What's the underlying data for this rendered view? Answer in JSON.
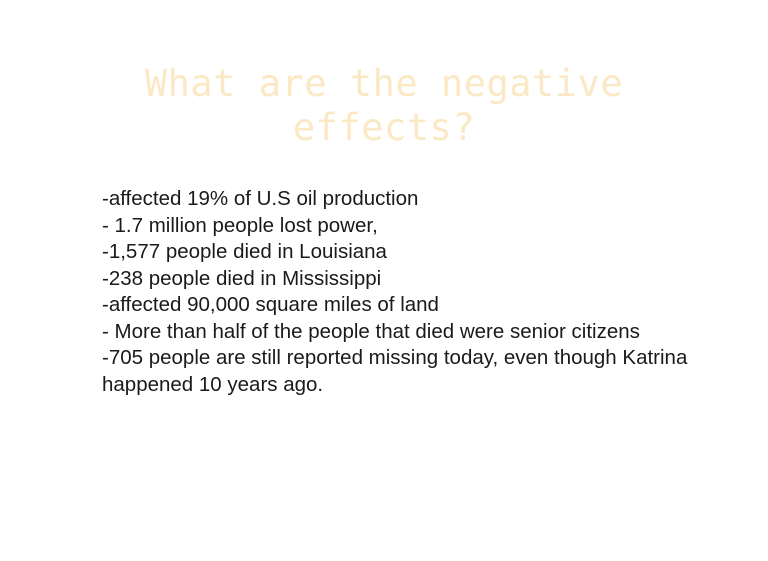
{
  "slide": {
    "title_line1": "What are the negative",
    "title_line2": "effects?",
    "bullets": [
      "-affected 19% of U.S oil production",
      "- 1.7 million people lost power,",
      "-1,577 people died in Louisiana",
      "-238 people died in Mississippi",
      "-affected 90,000 square miles of land",
      "- More than half of the people that died were senior citizens",
      "-705 people are still reported missing today, even though Katrina happened 10 years ago."
    ]
  },
  "colors": {
    "title": "#fbe9c6",
    "body_text": "#1a1a1a",
    "background": "#ffffff"
  }
}
